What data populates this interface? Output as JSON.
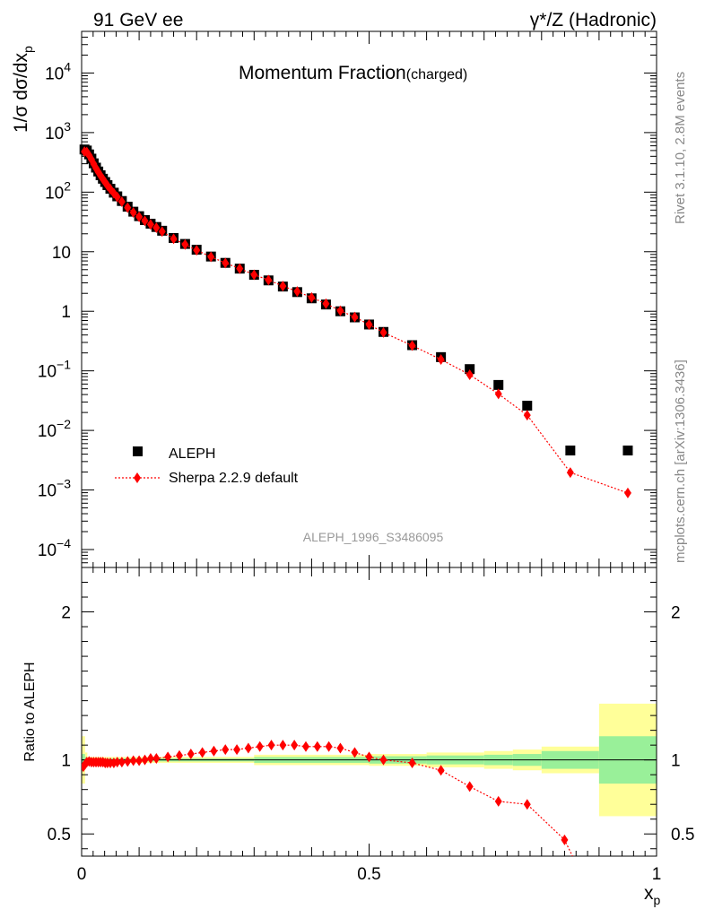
{
  "header": {
    "left": "91 GeV ee",
    "right": "γ*/Z (Hadronic)"
  },
  "side_labels": {
    "rivet": "Rivet 3.1.10,  2.8M events",
    "mcplots": "mcplots.cern.ch [arXiv:1306.3436]"
  },
  "chart_data": [
    {
      "type": "scatter",
      "title": "Momentum Fraction",
      "title_suffix": "(charged)",
      "ylabel_html": "1/σ dσ/dx",
      "ylabel_sub": "p",
      "yscale": "log",
      "ylim": [
        5e-05,
        50000
      ],
      "xlim": [
        0,
        1
      ],
      "y_ticks": [
        {
          "v": 0.0001,
          "base": "10",
          "exp": "−4"
        },
        {
          "v": 0.001,
          "base": "10",
          "exp": "−3"
        },
        {
          "v": 0.01,
          "base": "10",
          "exp": "−2"
        },
        {
          "v": 0.1,
          "base": "10",
          "exp": "−1"
        },
        {
          "v": 1,
          "base": "1",
          "exp": ""
        },
        {
          "v": 10,
          "base": "10",
          "exp": ""
        },
        {
          "v": 100,
          "base": "10",
          "exp": "2"
        },
        {
          "v": 1000,
          "base": "10",
          "exp": "3"
        },
        {
          "v": 10000,
          "base": "10",
          "exp": "4"
        }
      ],
      "watermark": "ALEPH_1996_S3486095",
      "legend_position": "bottom-left",
      "series": [
        {
          "name": "ALEPH",
          "marker": "square",
          "color": "#000000",
          "x": [
            0.005,
            0.009,
            0.013,
            0.017,
            0.021,
            0.025,
            0.029,
            0.033,
            0.037,
            0.041,
            0.045,
            0.05,
            0.056,
            0.062,
            0.07,
            0.08,
            0.09,
            0.1,
            0.11,
            0.12,
            0.13,
            0.14,
            0.16,
            0.18,
            0.2,
            0.225,
            0.25,
            0.275,
            0.3,
            0.325,
            0.35,
            0.375,
            0.4,
            0.425,
            0.45,
            0.475,
            0.5,
            0.525,
            0.575,
            0.625,
            0.675,
            0.725,
            0.775,
            0.85,
            0.95
          ],
          "y": [
            520,
            500,
            430,
            365,
            305,
            258,
            222,
            192,
            168,
            148,
            131,
            114,
            98,
            85,
            71,
            57,
            47,
            39.5,
            34,
            29.5,
            26,
            22.5,
            17,
            13.5,
            10.8,
            8.3,
            6.5,
            5.2,
            4.1,
            3.3,
            2.6,
            2.1,
            1.65,
            1.3,
            1.0,
            0.79,
            0.6,
            0.45,
            0.27,
            0.17,
            0.107,
            0.058,
            0.026,
            0.0046,
            0.0046
          ]
        },
        {
          "name": "Sherpa 2.2.9 default",
          "marker": "diamond",
          "color": "#ff0000",
          "line": "dotted",
          "x": [
            0.005,
            0.009,
            0.013,
            0.017,
            0.021,
            0.025,
            0.029,
            0.033,
            0.037,
            0.041,
            0.045,
            0.05,
            0.056,
            0.062,
            0.07,
            0.08,
            0.09,
            0.1,
            0.11,
            0.12,
            0.13,
            0.14,
            0.16,
            0.18,
            0.2,
            0.225,
            0.25,
            0.275,
            0.3,
            0.325,
            0.35,
            0.375,
            0.4,
            0.425,
            0.45,
            0.475,
            0.5,
            0.525,
            0.575,
            0.625,
            0.675,
            0.725,
            0.775,
            0.85,
            0.95
          ],
          "y": [
            480,
            470,
            415,
            355,
            298,
            252,
            218,
            189,
            166,
            146,
            129,
            112,
            96,
            83,
            69,
            55,
            45.5,
            38.5,
            33,
            28.7,
            25.3,
            21.8,
            16.5,
            13.2,
            10.6,
            8.2,
            6.45,
            5.2,
            4.1,
            3.35,
            2.65,
            2.15,
            1.7,
            1.34,
            1.02,
            0.8,
            0.6,
            0.44,
            0.265,
            0.155,
            0.086,
            0.041,
            0.018,
            0.00196,
            0.00089
          ]
        }
      ]
    },
    {
      "type": "ratio",
      "ylabel": "Ratio to ALEPH",
      "ylim": [
        0.35,
        2.3
      ],
      "xlim": [
        0,
        1
      ],
      "xlabel": "x",
      "xlabel_sub": "p",
      "y_ticks": [
        {
          "v": 0.5,
          "label": "0.5"
        },
        {
          "v": 1,
          "label": "1"
        },
        {
          "v": 2,
          "label": "2"
        }
      ],
      "x_ticks": [
        {
          "v": 0,
          "label": "0"
        },
        {
          "v": 0.5,
          "label": "0.5"
        },
        {
          "v": 1,
          "label": "1"
        }
      ],
      "bands": [
        {
          "x0": 0.0,
          "x1": 0.006,
          "in": 0.96,
          "out": 0.84,
          "in2": 1.04,
          "out2": 1.16
        },
        {
          "x0": 0.006,
          "x1": 0.01,
          "in": 0.98,
          "out": 0.95,
          "in2": 1.02,
          "out2": 1.05
        },
        {
          "x0": 0.01,
          "x1": 0.3,
          "in": 0.99,
          "out": 0.98,
          "in2": 1.01,
          "out2": 1.02
        },
        {
          "x0": 0.3,
          "x1": 0.5,
          "in": 0.98,
          "out": 0.965,
          "in2": 1.02,
          "out2": 1.035
        },
        {
          "x0": 0.5,
          "x1": 0.6,
          "in": 0.975,
          "out": 0.96,
          "in2": 1.025,
          "out2": 1.04
        },
        {
          "x0": 0.6,
          "x1": 0.7,
          "in": 0.97,
          "out": 0.95,
          "in2": 1.03,
          "out2": 1.05
        },
        {
          "x0": 0.7,
          "x1": 0.75,
          "in": 0.965,
          "out": 0.94,
          "in2": 1.035,
          "out2": 1.06
        },
        {
          "x0": 0.75,
          "x1": 0.8,
          "in": 0.96,
          "out": 0.93,
          "in2": 1.04,
          "out2": 1.07
        },
        {
          "x0": 0.8,
          "x1": 0.9,
          "in": 0.94,
          "out": 0.91,
          "in2": 1.06,
          "out2": 1.09
        },
        {
          "x0": 0.9,
          "x1": 1.0,
          "in": 0.84,
          "out": 0.62,
          "in2": 1.16,
          "out2": 1.38
        }
      ],
      "band_colors": {
        "inner": "#99f099",
        "outer": "#ffff99"
      },
      "series": [
        {
          "name": "Sherpa 2.2.9 default",
          "color": "#ff0000",
          "x": [
            0.003,
            0.006,
            0.009,
            0.013,
            0.017,
            0.021,
            0.025,
            0.029,
            0.033,
            0.037,
            0.041,
            0.045,
            0.05,
            0.056,
            0.062,
            0.07,
            0.08,
            0.09,
            0.1,
            0.11,
            0.12,
            0.13,
            0.15,
            0.17,
            0.19,
            0.21,
            0.23,
            0.25,
            0.27,
            0.29,
            0.31,
            0.33,
            0.35,
            0.37,
            0.39,
            0.41,
            0.43,
            0.45,
            0.475,
            0.5,
            0.525,
            0.575,
            0.625,
            0.675,
            0.725,
            0.775,
            0.84,
            0.86
          ],
          "y": [
            0.955,
            0.97,
            0.985,
            0.99,
            0.985,
            0.985,
            0.985,
            0.985,
            0.985,
            0.985,
            0.98,
            0.98,
            0.98,
            0.98,
            0.985,
            0.985,
            0.99,
            0.995,
            0.995,
            1.0,
            1.01,
            1.01,
            1.02,
            1.03,
            1.04,
            1.05,
            1.06,
            1.07,
            1.07,
            1.08,
            1.09,
            1.1,
            1.1,
            1.1,
            1.09,
            1.09,
            1.09,
            1.08,
            1.05,
            1.02,
            1.0,
            0.98,
            0.93,
            0.82,
            0.72,
            0.7,
            0.46,
            0.3
          ]
        }
      ]
    }
  ]
}
